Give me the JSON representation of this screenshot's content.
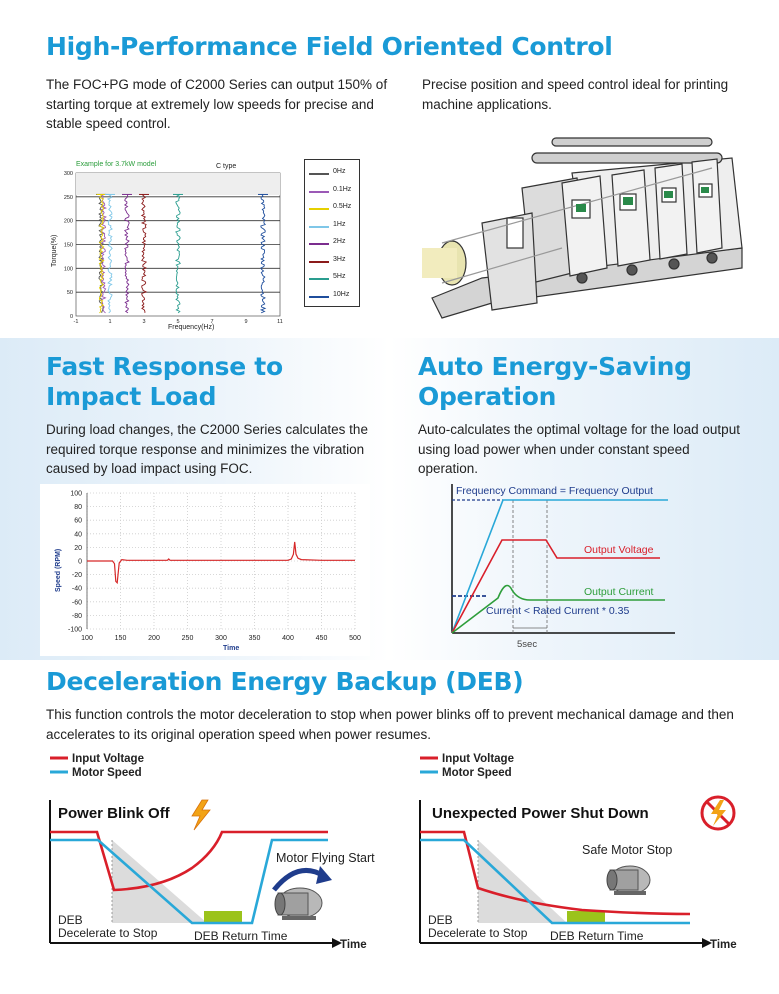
{
  "foc": {
    "title": "High-Performance Field Oriented Control",
    "text_left": "The FOC+PG mode of C2000 Series can output 150% of starting torque at extremely low speeds for precise and stable speed control.",
    "text_right": "Precise position and speed control ideal for printing machine applications.",
    "chart_note": "Example for 3.7kW model",
    "chart_type_label": "C type",
    "ylabel": "Torque(%)",
    "xlabel": "Frequency(Hz)",
    "yticks": [
      "300",
      "250",
      "200",
      "150",
      "100",
      "50",
      "0"
    ],
    "xticks": [
      "-1",
      "1",
      "3",
      "5",
      "7",
      "9",
      "11"
    ],
    "legend": [
      {
        "label": "0Hz",
        "color": "#555555"
      },
      {
        "label": "0.1Hz",
        "color": "#9b59b6"
      },
      {
        "label": "0.5Hz",
        "color": "#e6d000"
      },
      {
        "label": "1Hz",
        "color": "#7fc7e8"
      },
      {
        "label": "2Hz",
        "color": "#7b2d8e"
      },
      {
        "label": "3Hz",
        "color": "#8b1a1a"
      },
      {
        "label": "5Hz",
        "color": "#2a9d8f"
      },
      {
        "label": "10Hz",
        "color": "#1f4e9c"
      }
    ]
  },
  "impact": {
    "title_line1": "Fast Response to",
    "title_line2": "Impact Load",
    "text": "During load changes, the C2000 Series calculates the required torque response and minimizes the vibration caused by load impact using FOC.",
    "chart_data": {
      "type": "line",
      "xlabel": "Time",
      "ylabel": "Speed (RPM)",
      "xlim": [
        100,
        500
      ],
      "ylim": [
        -100,
        100
      ],
      "xticks": [
        "100",
        "150",
        "200",
        "250",
        "300",
        "350",
        "400",
        "450",
        "500"
      ],
      "yticks": [
        "100",
        "80",
        "60",
        "40",
        "20",
        "0",
        "-20",
        "-40",
        "-60",
        "-80",
        "-100"
      ],
      "series": [
        {
          "color": "#d62728",
          "x": [
            100,
            138,
            141,
            143,
            145,
            148,
            152,
            160,
            200,
            220,
            222,
            224,
            300,
            350,
            400,
            405,
            408,
            410,
            412,
            415,
            420,
            450,
            500
          ],
          "y": [
            0,
            0,
            -4,
            -30,
            -32,
            -3,
            2,
            1,
            1,
            1,
            3,
            1,
            1,
            1,
            1,
            3,
            10,
            28,
            10,
            4,
            2,
            1,
            1
          ]
        }
      ]
    }
  },
  "energy": {
    "title_line1": "Auto Energy-Saving",
    "title_line2": "Operation",
    "text": "Auto-calculates the optimal voltage for the load output using load power when under constant speed operation.",
    "freq_label": "Frequency Command = Frequency Output",
    "voltage_label": "Output Voltage",
    "current_label": "Output Current",
    "rated_label": "Current < Rated Current * 0.35",
    "time_label": "5sec",
    "colors": {
      "frequency": "#29a8d8",
      "voltage": "#d91f2a",
      "current": "#2e9e3b",
      "rated": "#1f3c8c"
    }
  },
  "deb": {
    "title": "Deceleration Energy Backup (DEB)",
    "text": "This function controls the motor deceleration to stop when power blinks off to prevent mechanical damage and then accelerates to its original operation speed when power resumes.",
    "legend_voltage": "Input Voltage",
    "legend_speed": "Motor Speed",
    "left": {
      "title": "Power Blink Off",
      "flying_start": "Motor Flying Start",
      "deb_label": "DEB",
      "decel_label": "Decelerate to Stop",
      "return_label": "DEB Return Time",
      "time_label": "Time"
    },
    "right": {
      "title": "Unexpected Power Shut Down",
      "safe_stop": "Safe Motor Stop",
      "deb_label": "DEB",
      "decel_label": "Decelerate to Stop",
      "return_label": "DEB Return Time",
      "time_label": "Time"
    },
    "colors": {
      "voltage": "#d91f2a",
      "speed": "#29a8d8",
      "return": "#9bc31b"
    }
  }
}
